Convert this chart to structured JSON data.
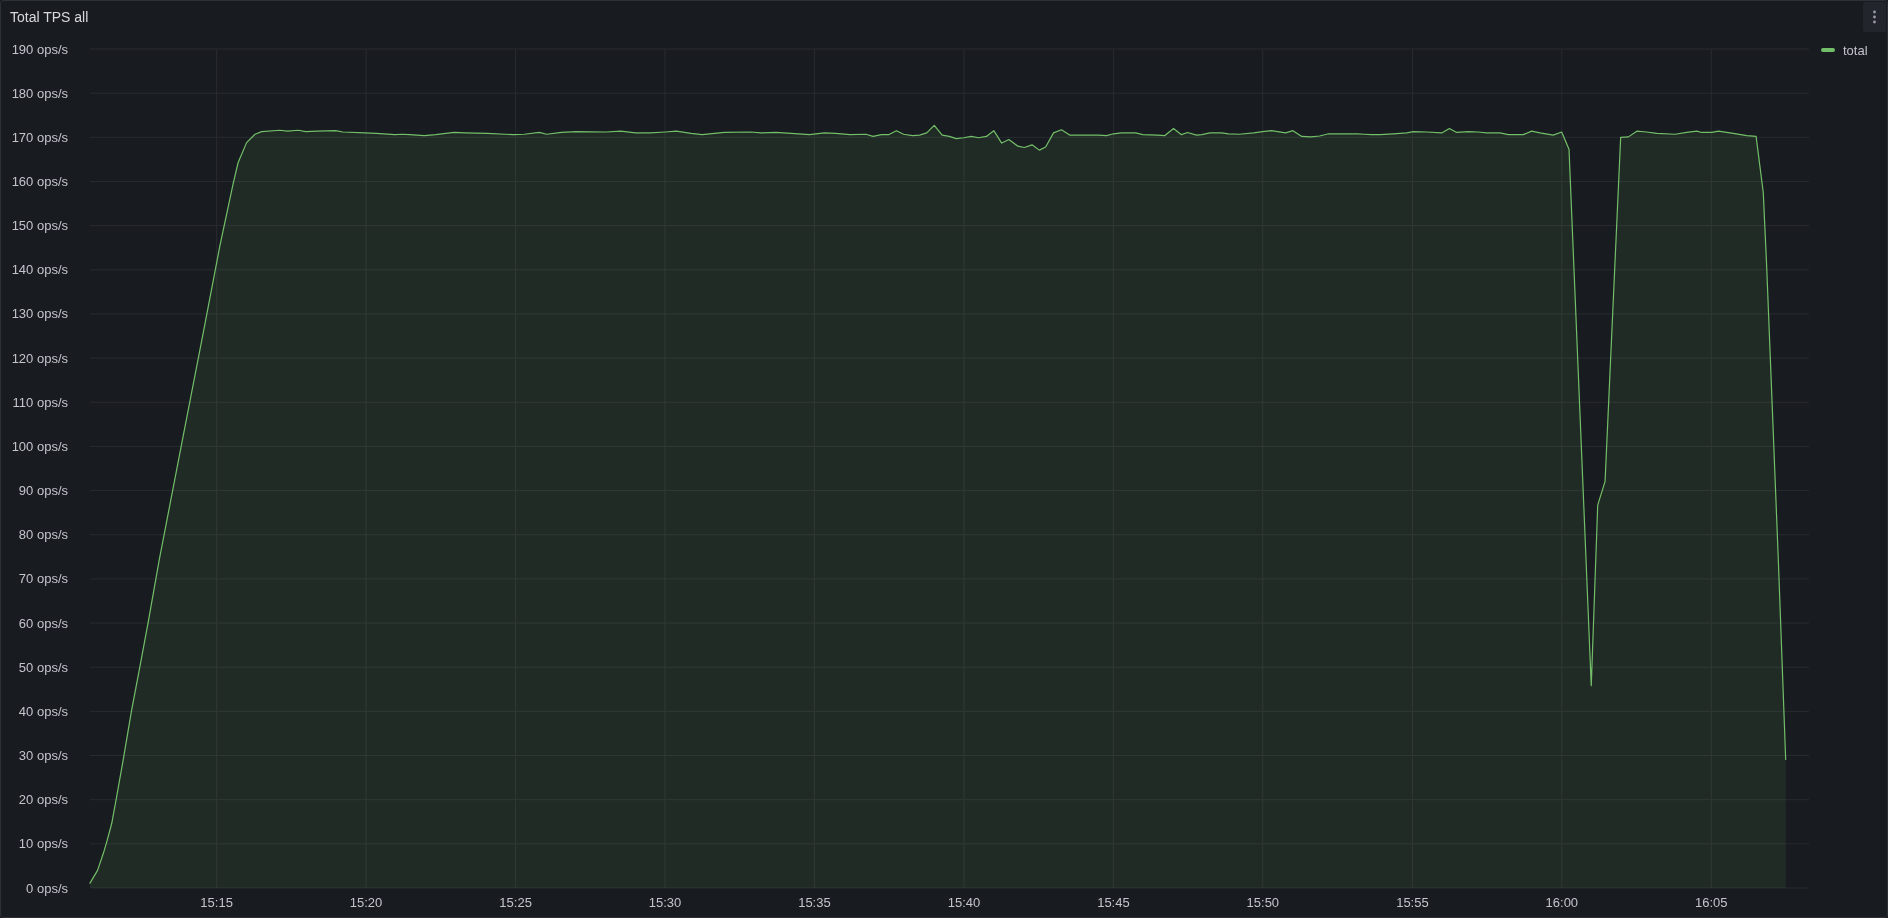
{
  "chart_data": {
    "type": "area",
    "title": "Total TPS all",
    "x": [
      15.1794,
      15.1836,
      15.1868,
      15.1887,
      15.1915,
      15.1942,
      15.1979,
      15.2026,
      15.2072,
      15.2119,
      15.218,
      15.2295,
      15.2429,
      15.2518,
      15.2593,
      15.262,
      15.2667,
      15.2714,
      15.2751,
      15.2853,
      15.2894,
      15.2956,
      15.2997,
      15.3059,
      15.3163,
      15.3204,
      15.3328,
      15.339,
      15.3493,
      15.3534,
      15.3576,
      15.3658,
      15.3721,
      15.3824,
      15.3886,
      15.4009,
      15.4154,
      15.4216,
      15.4299,
      15.434,
      15.4423,
      15.4505,
      15.467,
      15.4753,
      15.4836,
      15.4918,
      15.5001,
      15.5063,
      15.5145,
      15.5207,
      15.5331,
      15.5476,
      15.5538,
      15.562,
      15.5703,
      15.5806,
      15.5888,
      15.5951,
      15.6031,
      15.612,
      15.616,
      15.6206,
      15.6246,
      15.629,
      15.633,
      15.638,
      15.6419,
      15.6459,
      15.6501,
      15.6545,
      15.6585,
      15.6624,
      15.6665,
      15.6708,
      15.6748,
      15.6792,
      15.6833,
      15.6877,
      15.6917,
      15.6967,
      15.7003,
      15.7046,
      15.7087,
      15.7122,
      15.7166,
      15.721,
      15.7256,
      15.7325,
      15.7415,
      15.7461,
      15.7501,
      15.7544,
      15.7624,
      15.7664,
      15.7743,
      15.7787,
      15.7835,
      15.7879,
      15.7913,
      15.7963,
      15.7993,
      15.8038,
      15.8102,
      15.8142,
      15.8202,
      15.8281,
      15.8331,
      15.8381,
      15.846,
      15.8501,
      15.855,
      15.86,
      15.8649,
      15.87,
      15.8759,
      15.8859,
      15.8899,
      15.8938,
      15.8986,
      15.906,
      15.9135,
      15.9172,
      15.9247,
      15.933,
      15.9373,
      15.9414,
      15.9479,
      15.9534,
      15.9581,
      15.9655,
      15.9702,
      15.9785,
      15.9832,
      15.9878,
      15.9952,
      15.9999,
      16.004,
      16.0164,
      16.02,
      16.0241,
      16.0328,
      16.0371,
      16.0418,
      16.0473,
      16.0529,
      16.0631,
      16.0696,
      16.0752,
      16.078,
      16.0836,
      16.0873,
      16.0956,
      16.1031,
      16.1083,
      16.1123,
      16.1142,
      16.1207,
      16.1248
    ],
    "series": [
      {
        "name": "total",
        "color": "#73bf69",
        "values": [
          1.1,
          4.0,
          7.8,
          10.4,
          14.6,
          20.6,
          29.0,
          40.3,
          50.1,
          60.3,
          74.3,
          98.5,
          126.5,
          145.4,
          159.7,
          164.3,
          168.8,
          170.7,
          171.3,
          171.6,
          171.4,
          171.6,
          171.3,
          171.4,
          171.5,
          171.2,
          171.0,
          170.9,
          170.6,
          170.7,
          170.6,
          170.4,
          170.6,
          171.1,
          171.0,
          170.9,
          170.6,
          170.7,
          171.1,
          170.7,
          171.1,
          171.3,
          171.2,
          171.4,
          171.0,
          171.0,
          171.2,
          171.4,
          170.9,
          170.6,
          171.1,
          171.2,
          171.0,
          171.1,
          170.9,
          170.6,
          171.0,
          170.9,
          170.6,
          170.7,
          170.2,
          170.6,
          170.6,
          171.5,
          170.7,
          170.4,
          170.5,
          171.0,
          172.7,
          170.5,
          170.2,
          169.7,
          169.9,
          170.2,
          169.9,
          170.2,
          171.5,
          168.7,
          169.5,
          168.0,
          167.7,
          168.3,
          167.1,
          167.8,
          171.0,
          171.7,
          170.5,
          170.5,
          170.5,
          170.4,
          170.8,
          171.0,
          171.0,
          170.6,
          170.5,
          170.4,
          172.0,
          170.6,
          171.1,
          170.5,
          170.6,
          171.0,
          171.0,
          170.8,
          170.7,
          171.0,
          171.3,
          171.5,
          171.0,
          171.5,
          170.2,
          170.1,
          170.3,
          170.8,
          170.8,
          170.8,
          170.7,
          170.6,
          170.6,
          170.8,
          171.0,
          171.3,
          171.2,
          171.0,
          172.0,
          171.1,
          171.3,
          171.2,
          171.0,
          171.0,
          170.6,
          170.6,
          171.4,
          171.0,
          170.5,
          171.2,
          167.3,
          45.8,
          86.7,
          92.1,
          170.0,
          170.1,
          171.4,
          171.2,
          170.9,
          170.7,
          171.1,
          171.4,
          171.1,
          171.1,
          171.4,
          170.9,
          170.4,
          170.2,
          157.5,
          140.8,
          74.3,
          29.1
        ]
      }
    ],
    "xlim": [
      15.1794,
      16.1378
    ],
    "ylim": [
      0,
      190
    ],
    "xticks": [
      {
        "value": 15.25,
        "label": "15:15"
      },
      {
        "value": 15.3333,
        "label": "15:20"
      },
      {
        "value": 15.4167,
        "label": "15:25"
      },
      {
        "value": 15.5,
        "label": "15:30"
      },
      {
        "value": 15.5833,
        "label": "15:35"
      },
      {
        "value": 15.6667,
        "label": "15:40"
      },
      {
        "value": 15.75,
        "label": "15:45"
      },
      {
        "value": 15.8333,
        "label": "15:50"
      },
      {
        "value": 15.9167,
        "label": "15:55"
      },
      {
        "value": 16,
        "label": "16:00"
      },
      {
        "value": 16.0833,
        "label": "16:05"
      }
    ],
    "yticks": [
      {
        "value": 0,
        "label": "0 ops/s"
      },
      {
        "value": 10,
        "label": "10 ops/s"
      },
      {
        "value": 20,
        "label": "20 ops/s"
      },
      {
        "value": 30,
        "label": "30 ops/s"
      },
      {
        "value": 40,
        "label": "40 ops/s"
      },
      {
        "value": 50,
        "label": "50 ops/s"
      },
      {
        "value": 60,
        "label": "60 ops/s"
      },
      {
        "value": 70,
        "label": "70 ops/s"
      },
      {
        "value": 80,
        "label": "80 ops/s"
      },
      {
        "value": 90,
        "label": "90 ops/s"
      },
      {
        "value": 100,
        "label": "100 ops/s"
      },
      {
        "value": 110,
        "label": "110 ops/s"
      },
      {
        "value": 120,
        "label": "120 ops/s"
      },
      {
        "value": 130,
        "label": "130 ops/s"
      },
      {
        "value": 140,
        "label": "140 ops/s"
      },
      {
        "value": 150,
        "label": "150 ops/s"
      },
      {
        "value": 160,
        "label": "160 ops/s"
      },
      {
        "value": 170,
        "label": "170 ops/s"
      },
      {
        "value": 180,
        "label": "180 ops/s"
      },
      {
        "value": 190,
        "label": "190 ops/s"
      }
    ],
    "grid": true,
    "legend": "top right"
  }
}
